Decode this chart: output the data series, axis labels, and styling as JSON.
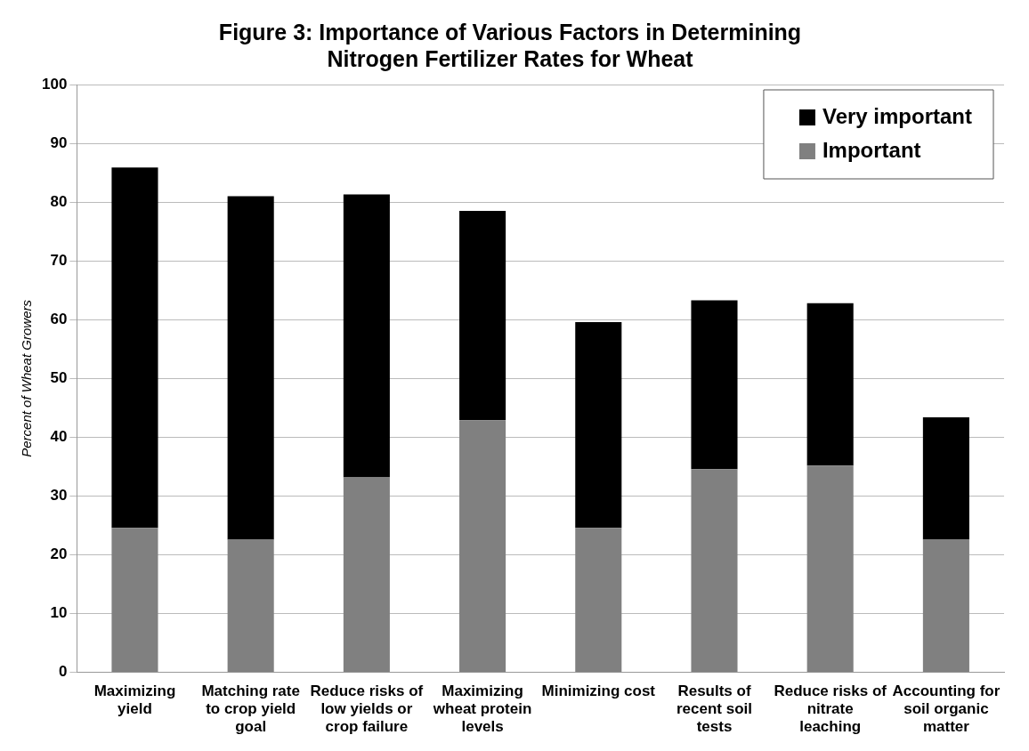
{
  "chart_data": {
    "type": "bar",
    "title": "Figure 3: Importance of Various Factors in Determining Nitrogen Fertilizer Rates for Wheat",
    "ylabel": "Percent of Wheat Growers",
    "categories": [
      "Maximizing yield",
      "Matching rate to crop yield goal",
      "Reduce risks of low yields or crop failure",
      "Maximizing wheat protein levels",
      "Minimizing cost",
      "Results of recent soil tests",
      "Reduce risks of nitrate leaching",
      "Accounting for soil organic matter"
    ],
    "series": [
      {
        "name": "Important",
        "color": "#808080",
        "values": [
          24.6,
          22.6,
          33.2,
          42.9,
          24.6,
          34.6,
          35.2,
          22.6
        ]
      },
      {
        "name": "Very important",
        "color": "#000000",
        "values": [
          61.3,
          58.4,
          48.1,
          35.6,
          35.0,
          28.7,
          27.6,
          20.8
        ]
      }
    ],
    "stacked": true,
    "ylim": [
      0,
      100
    ],
    "yticks": [
      0,
      10,
      20,
      30,
      40,
      50,
      60,
      70,
      80,
      90,
      100
    ],
    "grid": "y",
    "legend": "top right"
  }
}
